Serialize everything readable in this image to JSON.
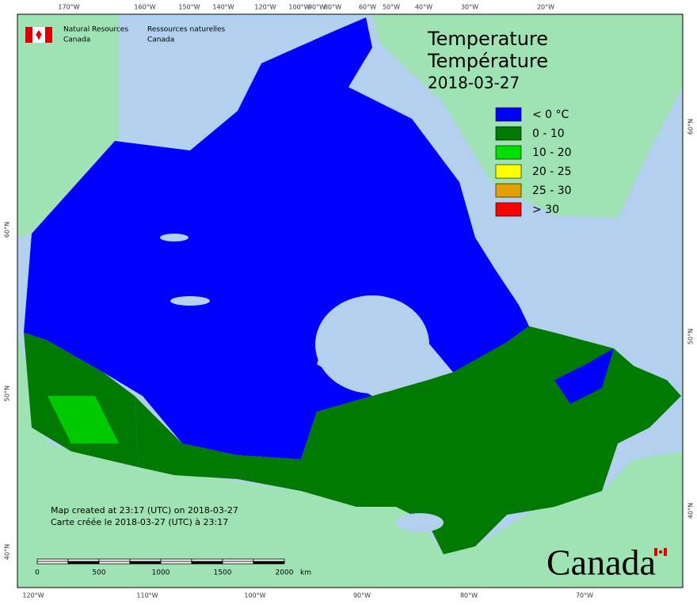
{
  "header": {
    "org_en": [
      "Natural Resources",
      "Canada"
    ],
    "org_fr": [
      "Ressources naturelles",
      "Canada"
    ]
  },
  "title": {
    "en": "Temperature",
    "fr": "Température",
    "date": "2018-03-27"
  },
  "legend": [
    {
      "label": "< 0 °C",
      "color": "#0000ff"
    },
    {
      "label": "0 - 10",
      "color": "#007a00"
    },
    {
      "label": "10 - 20",
      "color": "#00e000"
    },
    {
      "label": "20 - 25",
      "color": "#ffff00"
    },
    {
      "label": "25 - 30",
      "color": "#e0a000"
    },
    {
      "label": "> 30",
      "color": "#ff0000"
    }
  ],
  "graticule": {
    "top": [
      "170°W",
      "160°W",
      "150°W",
      "140°W",
      "120°W",
      "100°W",
      "90°W",
      "80°W",
      "60°W",
      "50°W",
      "40°W",
      "30°W",
      "20°W"
    ],
    "bottom": [
      "120°W",
      "110°W",
      "100°W",
      "90°W",
      "80°W",
      "70°W"
    ],
    "left": [
      "60°N",
      "50°N",
      "40°N"
    ],
    "right": [
      "60°N",
      "50°N",
      "40°N"
    ]
  },
  "credits": [
    "Map created at 23:17 (UTC) on 2018-03-27",
    "Carte créée le 2018-03-27 (UTC) à 23:17"
  ],
  "scale_bar": {
    "ticks": [
      0,
      500,
      1000,
      1500,
      2000
    ],
    "unit": "km"
  },
  "wordmark": "Canada"
}
